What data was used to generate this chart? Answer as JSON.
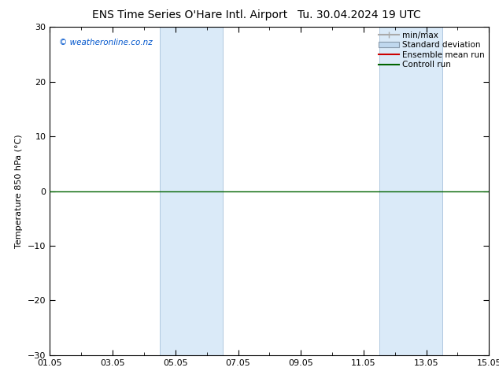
{
  "title_left": "ENS Time Series O'Hare Intl. Airport",
  "title_right": "Tu. 30.04.2024 19 UTC",
  "ylabel": "Temperature 850 hPa (°C)",
  "ylim": [
    -30,
    30
  ],
  "yticks": [
    -30,
    -20,
    -10,
    0,
    10,
    20,
    30
  ],
  "xtick_labels": [
    "01.05",
    "03.05",
    "05.05",
    "07.05",
    "09.05",
    "11.05",
    "13.05",
    "15.05"
  ],
  "xtick_positions": [
    0,
    2,
    4,
    6,
    8,
    10,
    12,
    14
  ],
  "xlim": [
    0,
    14
  ],
  "shade_bands": [
    {
      "xmin": 3.5,
      "xmax": 5.5,
      "color": "#daeaf8"
    },
    {
      "xmin": 10.5,
      "xmax": 12.5,
      "color": "#daeaf8"
    }
  ],
  "hline_y": 0,
  "hline_color": "#006400",
  "watermark": "© weatheronline.co.nz",
  "watermark_color": "#0055cc",
  "legend_items": [
    {
      "label": "min/max",
      "color": "#aaaaaa",
      "style": "minmax"
    },
    {
      "label": "Standard deviation",
      "color": "#c0d8ee",
      "style": "box"
    },
    {
      "label": "Ensemble mean run",
      "color": "#cc0000",
      "style": "line"
    },
    {
      "label": "Controll run",
      "color": "#006400",
      "style": "line"
    }
  ],
  "bg_color": "#ffffff",
  "title_fontsize": 10,
  "tick_fontsize": 8,
  "ylabel_fontsize": 8,
  "legend_fontsize": 7.5
}
